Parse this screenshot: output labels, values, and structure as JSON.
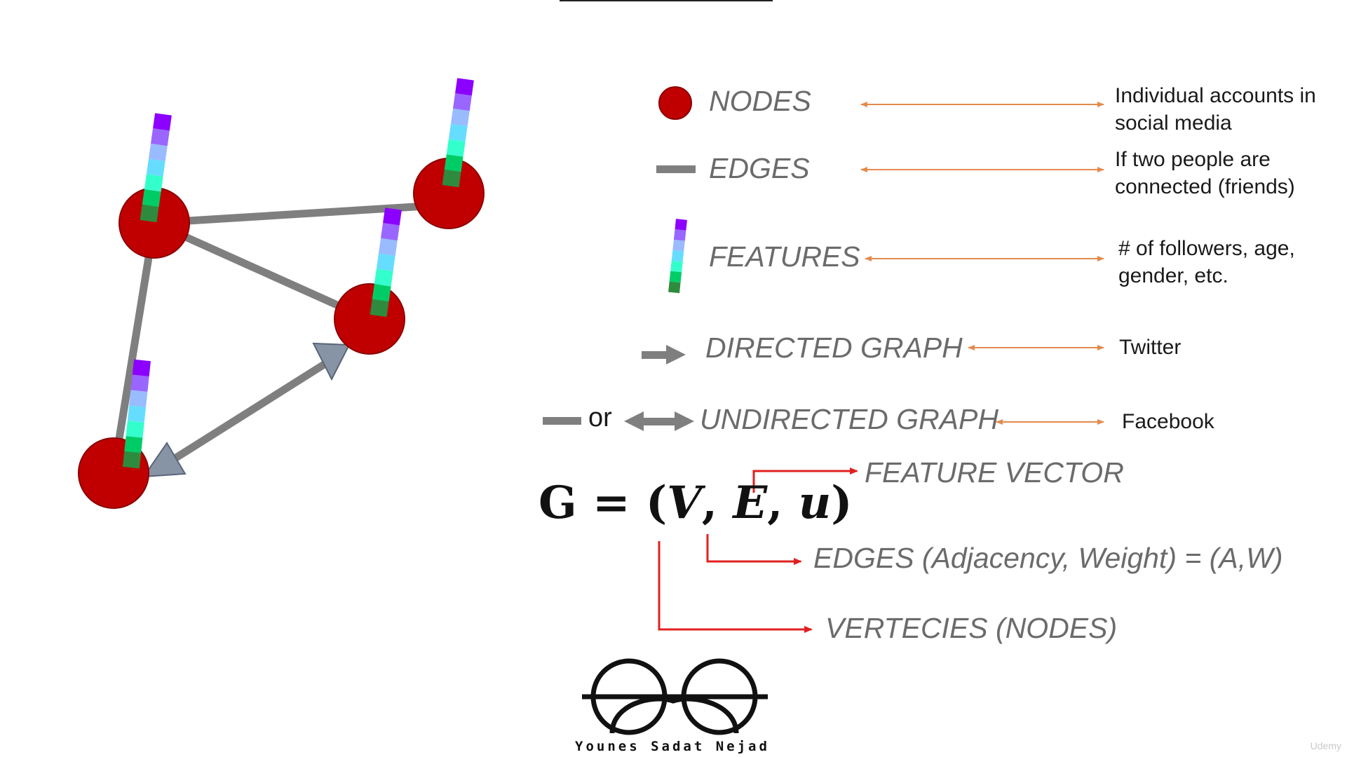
{
  "legend": {
    "nodes": {
      "label": "NODES",
      "description": [
        "Individual accounts in",
        "social media"
      ]
    },
    "edges": {
      "label": "EDGES",
      "description": [
        "If two people are",
        "connected (friends)"
      ]
    },
    "features": {
      "label": "FEATURES",
      "description": [
        "# of followers, age,",
        "gender, etc."
      ]
    },
    "directed": {
      "label": "DIRECTED GRAPH",
      "description": "Twitter"
    },
    "undirected": {
      "label": "UNDIRECTED GRAPH",
      "or": "or",
      "description": "Facebook"
    }
  },
  "formula": {
    "prefix": "G = (",
    "v": "V",
    "e": "E",
    "u": "u",
    "suffix": ")"
  },
  "annotations": {
    "feature_vector": "FEATURE VECTOR",
    "edges": "EDGES (Adjacency, Weight) = (A,W)",
    "vertices": "VERTECIES (NODES)"
  },
  "brand": "Younes Sadat Nejad",
  "watermark": "Udemy",
  "colors": {
    "node": "#c00000",
    "edge": "#7f7f7f",
    "arrow": "#e58a4e",
    "red_line": "#e02020",
    "label_gray": "#6b6b6b",
    "feature_stack": [
      "#8b00ff",
      "#9966ff",
      "#99bbff",
      "#66ddff",
      "#33ffcc",
      "#00cc66",
      "#2e8b3e"
    ]
  }
}
